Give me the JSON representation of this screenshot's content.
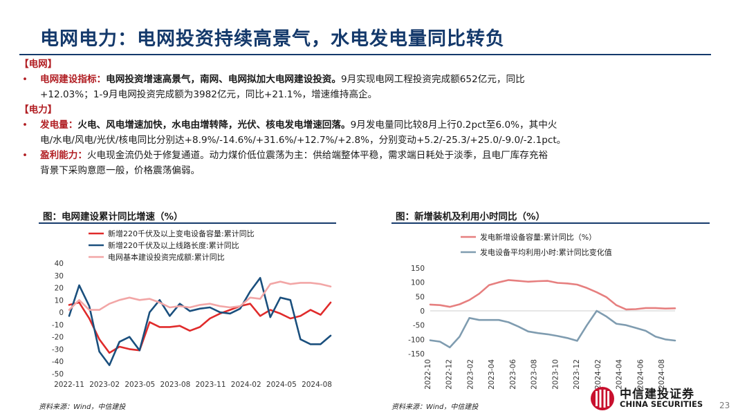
{
  "header": {
    "title": "电网电力：电网投资持续高景气，水电发电量同比转负"
  },
  "sections": [
    {
      "label": "【电网】",
      "bullets": [
        {
          "head": "电网建设指标：",
          "strong": "电网投资增速高景气，南网、电网拟加大电网建设投资。",
          "lines": [
            "9月实现电网工程投资完成额652亿元，同比",
            "+12.03%；1-9月电网投资完成额为3982亿元，同比+21.1%，增速维持高企。"
          ]
        }
      ]
    },
    {
      "label": "【电力】",
      "bullets": [
        {
          "head": "发电量：",
          "strong": "火电、风电增速加快，水电由增转降，光伏、核电发电增速回落。",
          "lines": [
            "9月发电量同比较8月上行0.2pct至6.0%，其中火",
            "电/水电/风电/光伏/核电同比分别达+8.9%/-14.6%/+31.6%/+12.7%/+2.8%，分别变动+5.2/-25.3/+25.0/-9.0/-2.1pct。"
          ]
        },
        {
          "head": "盈利能力：",
          "strong": "",
          "lines": [
            "火电现金流仍处于修复通道。动力煤价低位震荡为主：供给端整体平稳，需求端日耗处于淡季，且电厂库存充裕",
            "背景下采购意愿一般，价格震荡偏弱。"
          ]
        }
      ]
    }
  ],
  "figures": [
    {
      "title": "图：电网建设累计同比增速（%）",
      "source": "资料来源：Wind，中信建投"
    },
    {
      "title": "图：新增装机及利用小时同比（%）",
      "source": "资料来源：Wind，中信建投"
    }
  ],
  "chart_data": [
    {
      "type": "line",
      "ylim": [
        -50,
        40
      ],
      "yticks": [
        40,
        30,
        20,
        10,
        0,
        -10,
        -20,
        -30,
        -40,
        -50
      ],
      "xticks": [
        "2022-11",
        "2023-02",
        "2023-05",
        "2023-08",
        "2023-11",
        "2024-02",
        "2024-05",
        "2024-08"
      ],
      "legend_position": "top-left",
      "colors": [
        "#e02b2b",
        "#1a4f7d",
        "#f2a6a6"
      ],
      "series": [
        {
          "name": "新增220千伏及以上变电设备容量:累计同比",
          "values": [
            6,
            8,
            -5,
            -22,
            -33,
            -28,
            -30,
            -31,
            -8,
            -12,
            -12,
            -11,
            -15,
            -12,
            -5,
            -1,
            2,
            5,
            7,
            -3,
            2,
            -1,
            -5,
            -3,
            2,
            -2,
            8
          ]
        },
        {
          "name": "新增220千伏及以上线路长度:累计同比",
          "values": [
            -3,
            22,
            5,
            -32,
            -43,
            -24,
            -20,
            -31,
            0,
            10,
            -3,
            7,
            1,
            3,
            4,
            0,
            -1,
            3,
            17,
            28,
            -4,
            12,
            10,
            -22,
            -26,
            -26,
            -19
          ]
        },
        {
          "name": "电网基本建设投资完成额:累计同比",
          "values": [
            2,
            10,
            2,
            2,
            7,
            10,
            12,
            10,
            11,
            8,
            4,
            5,
            4,
            6,
            7,
            5,
            4,
            5,
            12,
            11,
            23,
            25,
            23,
            24,
            24,
            23,
            21
          ]
        }
      ]
    },
    {
      "type": "line",
      "ylim": [
        -150,
        150
      ],
      "yticks": [
        150,
        100,
        50,
        0,
        -50,
        -100,
        -150
      ],
      "xticks": [
        "2022-10",
        "2022-12",
        "2023-02",
        "2023-04",
        "2023-06",
        "2023-08",
        "2023-10",
        "2023-12",
        "2024-02",
        "2024-04",
        "2024-06",
        "2024-08"
      ],
      "legend_position": "top",
      "colors": [
        "#e67f7f",
        "#7f9cb0"
      ],
      "series": [
        {
          "name": "发电新增设备容量:累计同比（%）",
          "values": [
            22,
            20,
            14,
            23,
            38,
            60,
            90,
            100,
            108,
            105,
            102,
            104,
            105,
            98,
            96,
            92,
            80,
            65,
            48,
            20,
            5,
            6,
            10,
            10,
            8,
            9
          ]
        },
        {
          "name": "发电设备平均利用小时:累计同比变化值",
          "values": [
            -103,
            -108,
            -128,
            -90,
            -25,
            -32,
            -32,
            -32,
            -40,
            -55,
            -72,
            -78,
            -82,
            -88,
            -95,
            -105,
            -50,
            0,
            -20,
            -45,
            -50,
            -60,
            -70,
            -90,
            -100,
            -104
          ]
        }
      ]
    }
  ],
  "footer": {
    "logo_cn": "中信建投证券",
    "logo_en": "CHINA SECURITIES",
    "page": "23"
  }
}
